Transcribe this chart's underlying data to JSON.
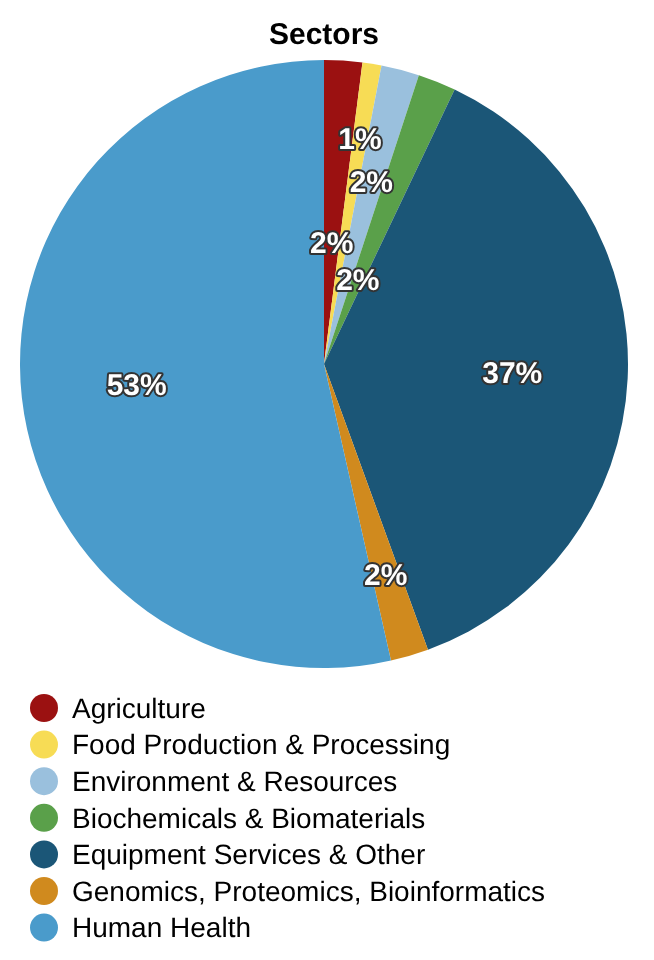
{
  "chart_data": {
    "type": "pie",
    "title": "Sectors",
    "categories": [
      "Agriculture",
      "Food Production & Processing",
      "Environment & Resources",
      "Biochemicals & Biomaterials",
      "Equipment Services & Other",
      "Genomics, Proteomics, Bioinformatics",
      "Human Health"
    ],
    "values": [
      2,
      1,
      2,
      2,
      37,
      2,
      53
    ],
    "colors": [
      "#9b1111",
      "#f7dc55",
      "#9ac0dd",
      "#5aa04a",
      "#1b5677",
      "#d08a1e",
      "#4a9bcb"
    ],
    "value_labels": [
      "2%",
      "1%",
      "2%",
      "2%",
      "37%",
      "2%",
      "53%"
    ],
    "legend": "bottom"
  }
}
